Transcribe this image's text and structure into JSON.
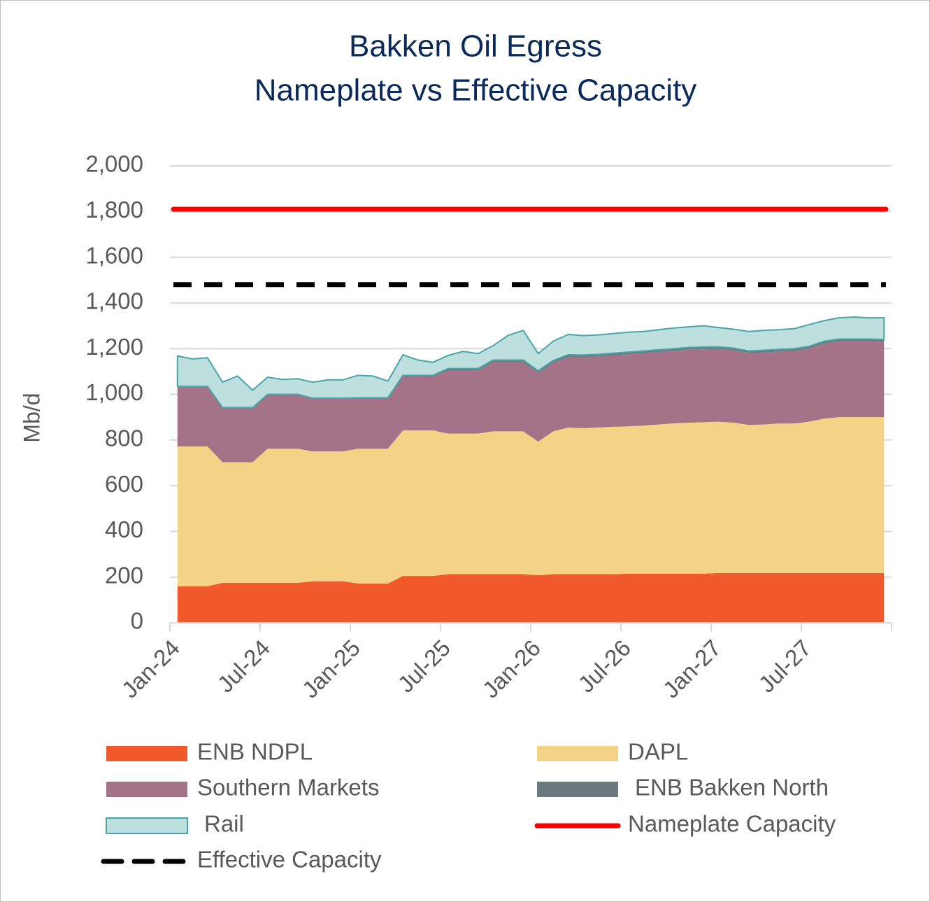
{
  "chart_data": {
    "type": "area",
    "title": "Bakken Oil Egress",
    "subtitle": "Nameplate vs Effective Capacity",
    "y_label": "Mb/d",
    "categories": [
      "Jan-24",
      null,
      null,
      null,
      null,
      null,
      "Jul-24",
      null,
      null,
      null,
      null,
      null,
      "Jan-25",
      null,
      null,
      null,
      null,
      null,
      "Jul-25",
      null,
      null,
      null,
      null,
      null,
      "Jan-26",
      null,
      null,
      null,
      null,
      null,
      "Jul-26",
      null,
      null,
      null,
      null,
      null,
      "Jan-27",
      null,
      null,
      null,
      null,
      null,
      "Jul-27",
      null,
      null,
      null,
      null,
      null
    ],
    "ylim": [
      0,
      2000
    ],
    "yticks": [
      0,
      200,
      400,
      600,
      800,
      {
        "value": 1000,
        "label": "1,000"
      },
      {
        "value": 1200,
        "label": "1,200"
      },
      {
        "value": 1400,
        "label": "1,400"
      },
      {
        "value": 1600,
        "label": "1,600"
      },
      {
        "value": 1800,
        "label": "1,800"
      },
      {
        "value": 2000,
        "label": "2,000"
      }
    ],
    "grid": true,
    "legend": "bottom",
    "series": [
      {
        "name": "ENB NDPL",
        "color": "#f15a2b",
        "stacked": true,
        "values": [
          160,
          160,
          160,
          175,
          175,
          175,
          175,
          175,
          175,
          182,
          182,
          182,
          172,
          172,
          172,
          205,
          205,
          205,
          213,
          213,
          213,
          213,
          213,
          213,
          208,
          213,
          213,
          213,
          213,
          213,
          215,
          215,
          215,
          215,
          215,
          215,
          218,
          218,
          218,
          218,
          218,
          218,
          218,
          218,
          218,
          218,
          218,
          218
        ]
      },
      {
        "name": "DAPL",
        "color": "#f3d386",
        "stacked": true,
        "values": [
          612,
          612,
          612,
          528,
          528,
          528,
          587,
          587,
          587,
          568,
          568,
          568,
          590,
          590,
          590,
          637,
          637,
          637,
          615,
          615,
          615,
          625,
          625,
          625,
          585,
          625,
          642,
          639,
          642,
          645,
          645,
          648,
          653,
          658,
          661,
          663,
          662,
          658,
          648,
          650,
          654,
          654,
          662,
          675,
          682,
          682,
          682,
          682
        ]
      },
      {
        "name": "Southern Markets",
        "color": "#a57388",
        "stacked": true,
        "values": [
          263,
          263,
          263,
          239,
          239,
          239,
          238,
          238,
          238,
          233,
          233,
          233,
          223,
          223,
          223,
          236,
          236,
          236,
          275,
          275,
          275,
          302,
          302,
          302,
          300,
          300,
          308,
          310,
          310,
          312,
          315,
          317,
          317,
          317,
          319,
          319,
          318,
          316,
          314,
          315,
          315,
          318,
          320,
          329,
          332,
          332,
          332,
          330
        ]
      },
      {
        "name": "ENB Bakken North",
        "color": "#6b7b80",
        "stacked": true,
        "values": [
          0,
          0,
          0,
          0,
          0,
          0,
          0,
          0,
          0,
          0,
          0,
          0,
          0,
          0,
          0,
          5,
          5,
          5,
          10,
          10,
          10,
          10,
          10,
          10,
          10,
          10,
          10,
          10,
          10,
          10,
          10,
          10,
          10,
          10,
          10,
          10,
          10,
          10,
          10,
          10,
          10,
          10,
          10,
          10,
          10,
          10,
          10,
          10
        ]
      },
      {
        "name": "Rail",
        "color": "#bde0df",
        "edge_color": "#4aa5a8",
        "stacked": true,
        "values": [
          133,
          120,
          125,
          111,
          138,
          76,
          75,
          65,
          68,
          70,
          80,
          80,
          98,
          95,
          73,
          90,
          67,
          57,
          57,
          75,
          65,
          63,
          108,
          130,
          75,
          85,
          89,
          85,
          85,
          86,
          87,
          85,
          88,
          90,
          90,
          93,
          84,
          83,
          85,
          87,
          86,
          87,
          95,
          90,
          93,
          96,
          93,
          95
        ]
      },
      {
        "name": "Nameplate Capacity",
        "color": "#ff0000",
        "stacked": false,
        "line_style": "solid",
        "values": [
          1810,
          1810,
          1810,
          1810,
          1810,
          1810,
          1810,
          1810,
          1810,
          1810,
          1810,
          1810,
          1810,
          1810,
          1810,
          1810,
          1810,
          1810,
          1810,
          1810,
          1810,
          1810,
          1810,
          1810,
          1810,
          1810,
          1810,
          1810,
          1810,
          1810,
          1810,
          1810,
          1810,
          1810,
          1810,
          1810,
          1810,
          1810,
          1810,
          1810,
          1810,
          1810,
          1810,
          1810,
          1810,
          1810,
          1810,
          1810
        ]
      },
      {
        "name": "Effective Capacity",
        "color": "#000000",
        "stacked": false,
        "line_style": "dashed",
        "values": [
          1480,
          1480,
          1480,
          1480,
          1480,
          1480,
          1480,
          1480,
          1480,
          1480,
          1480,
          1480,
          1480,
          1480,
          1480,
          1480,
          1480,
          1480,
          1480,
          1480,
          1480,
          1480,
          1480,
          1480,
          1480,
          1480,
          1480,
          1480,
          1480,
          1480,
          1480,
          1480,
          1480,
          1480,
          1480,
          1480,
          1480,
          1480,
          1480,
          1480,
          1480,
          1480,
          1480,
          1480,
          1480,
          1480,
          1480,
          1480
        ]
      }
    ]
  }
}
